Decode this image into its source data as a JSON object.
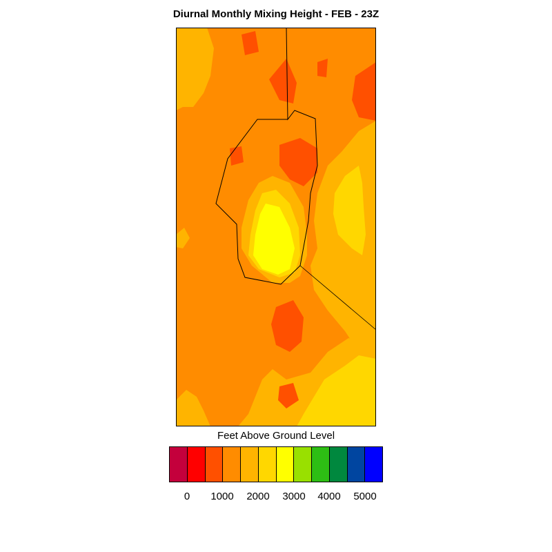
{
  "title": "Diurnal Monthly Mixing Height - FEB - 23Z",
  "colorbar_label": "Feet Above Ground Level",
  "colorbar_colors": [
    "#c4003c",
    "#ff0000",
    "#ff5000",
    "#ff8c00",
    "#ffb400",
    "#ffd700",
    "#ffff00",
    "#99e000",
    "#2dbe14",
    "#00883e",
    "#0045a0",
    "#0000ff"
  ],
  "colorbar_ticks": [
    "0",
    "1000",
    "2000",
    "3000",
    "4000",
    "5000"
  ],
  "map_colors": {
    "background": "#ff8c00",
    "light": "#ffb400",
    "lighter": "#ffd700",
    "yellow": "#ffff00",
    "dark": "#ff5000",
    "outline": "#000000"
  }
}
